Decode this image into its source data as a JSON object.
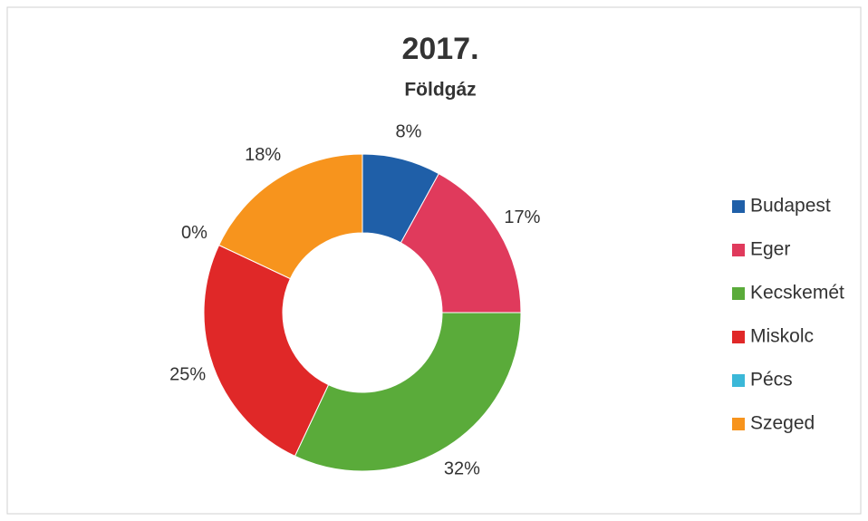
{
  "chart_data": {
    "type": "donut",
    "title": "2017.",
    "subtitle": "Földgáz",
    "categories": [
      "Budapest",
      "Eger",
      "Kecskemét",
      "Miskolc",
      "Pécs",
      "Szeged"
    ],
    "values": [
      8,
      17,
      32,
      25,
      0,
      18
    ],
    "value_labels": [
      "8%",
      "17%",
      "32%",
      "25%",
      "0%",
      "18%"
    ],
    "colors": [
      "#1f5fa8",
      "#e03a5c",
      "#5aab3a",
      "#e02828",
      "#3bb8d8",
      "#f7941d"
    ],
    "legend": "right"
  }
}
